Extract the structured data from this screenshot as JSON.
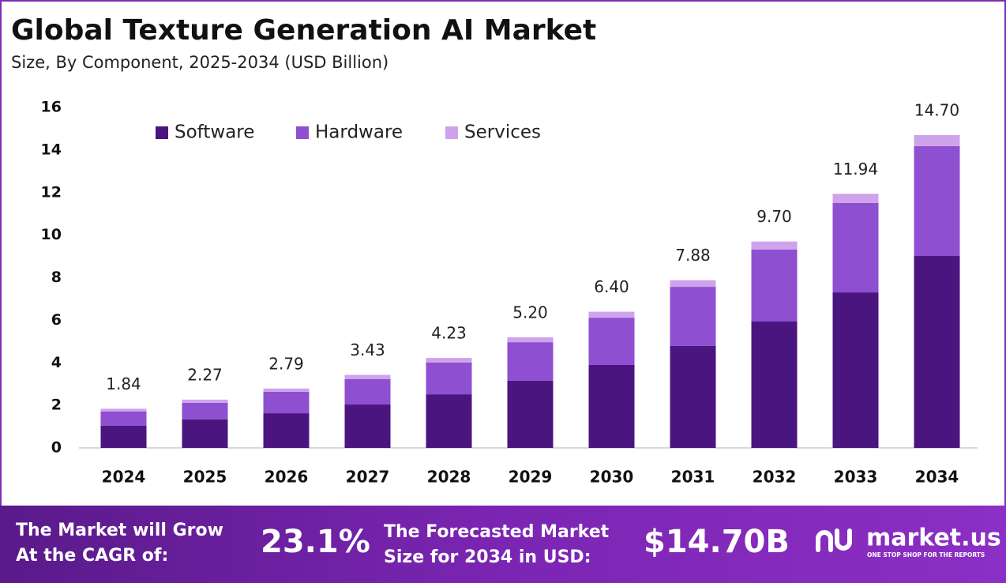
{
  "chart_data": {
    "type": "stacked-bar",
    "title": "Global Texture Generation AI Market",
    "subtitle": "Size, By Component, 2025-2034 (USD Billion)",
    "categories": [
      "2024",
      "2025",
      "2026",
      "2027",
      "2028",
      "2029",
      "2030",
      "2031",
      "2032",
      "2033",
      "2034"
    ],
    "series": [
      {
        "name": "Software",
        "color": "#4b1580",
        "values": [
          1.04,
          1.34,
          1.63,
          2.04,
          2.52,
          3.16,
          3.9,
          4.79,
          5.94,
          7.31,
          9.02
        ]
      },
      {
        "name": "Hardware",
        "color": "#8e4fd0",
        "values": [
          0.67,
          0.78,
          1.01,
          1.19,
          1.49,
          1.81,
          2.22,
          2.78,
          3.38,
          4.2,
          5.16
        ]
      },
      {
        "name": "Services",
        "color": "#cfa3ec",
        "values": [
          0.13,
          0.15,
          0.15,
          0.2,
          0.22,
          0.23,
          0.28,
          0.31,
          0.38,
          0.43,
          0.52
        ]
      }
    ],
    "totals": [
      1.84,
      2.27,
      2.79,
      3.43,
      4.23,
      5.2,
      6.4,
      7.88,
      9.7,
      11.94,
      14.7
    ],
    "total_labels": [
      "1.84",
      "2.27",
      "2.79",
      "3.43",
      "4.23",
      "5.20",
      "6.40",
      "7.88",
      "9.70",
      "11.94",
      "14.70"
    ],
    "ylim": [
      0,
      16
    ],
    "yticks": [
      0,
      2,
      4,
      6,
      8,
      10,
      12,
      14,
      16
    ],
    "grid": false,
    "legend": "top-left"
  },
  "footer": {
    "cagr_text": [
      "The Market will Grow",
      "At the CAGR of:"
    ],
    "cagr_value": "23.1%",
    "forecast_text": [
      "The Forecasted Market",
      "Size for 2034 in USD:"
    ],
    "forecast_value": "$14.70B",
    "logo": "market.us",
    "tagline": "ONE STOP SHOP FOR THE REPORTS"
  }
}
